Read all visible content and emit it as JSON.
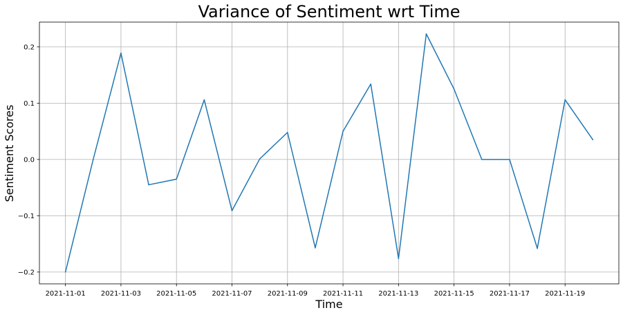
{
  "chart_data": {
    "type": "line",
    "title": "Variance of Sentiment wrt Time",
    "xlabel": "Time",
    "ylabel": "Sentiment Scores",
    "grid": true,
    "legend": "none",
    "x": [
      "2021-11-01",
      "2021-11-02",
      "2021-11-03",
      "2021-11-04",
      "2021-11-05",
      "2021-11-06",
      "2021-11-07",
      "2021-11-08",
      "2021-11-09",
      "2021-11-10",
      "2021-11-11",
      "2021-11-12",
      "2021-11-13",
      "2021-11-14",
      "2021-11-15",
      "2021-11-16",
      "2021-11-17",
      "2021-11-18",
      "2021-11-19",
      "2021-11-20"
    ],
    "series": [
      {
        "values": [
          -0.2,
          0.0,
          0.189,
          -0.045,
          -0.035,
          0.106,
          -0.091,
          0.001,
          0.048,
          -0.157,
          0.05,
          0.134,
          -0.176,
          0.223,
          0.125,
          0.0,
          0.0,
          -0.158,
          0.106,
          0.035
        ],
        "color": "#1f77b4"
      }
    ],
    "x_ticks": [
      "2021-11-01",
      "2021-11-03",
      "2021-11-05",
      "2021-11-07",
      "2021-11-09",
      "2021-11-11",
      "2021-11-13",
      "2021-11-15",
      "2021-11-17",
      "2021-11-19"
    ],
    "y_ticks": [
      -0.2,
      -0.1,
      0.0,
      0.1,
      0.2
    ],
    "y_tick_labels": [
      "−0.2",
      "−0.1",
      "0.0",
      "0.1",
      "0.2"
    ],
    "xlim": [
      "2021-10-31T01:30",
      "2021-11-20T22:30"
    ],
    "ylim": [
      -0.221,
      0.244
    ]
  }
}
